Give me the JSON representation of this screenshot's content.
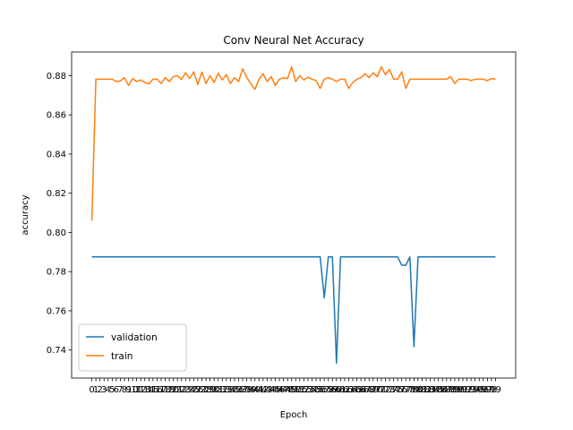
{
  "chart_data": {
    "type": "line",
    "title": "Conv Neural Net Accuracy",
    "x_label": "Epoch",
    "y_label": "accuracy",
    "x": [
      0,
      1,
      2,
      3,
      4,
      5,
      6,
      7,
      8,
      9,
      10,
      11,
      12,
      13,
      14,
      15,
      16,
      17,
      18,
      19,
      20,
      21,
      22,
      23,
      24,
      25,
      26,
      27,
      28,
      29,
      30,
      31,
      32,
      33,
      34,
      35,
      36,
      37,
      38,
      39,
      40,
      41,
      42,
      43,
      44,
      45,
      46,
      47,
      48,
      49,
      50,
      51,
      52,
      53,
      54,
      55,
      56,
      57,
      58,
      59,
      60,
      61,
      62,
      63,
      64,
      65,
      66,
      67,
      68,
      69,
      70,
      71,
      72,
      73,
      74,
      75,
      76,
      77,
      78,
      79,
      80,
      81,
      82,
      83,
      84,
      85,
      86,
      87,
      88,
      89,
      90,
      91,
      92,
      93,
      94,
      95,
      96,
      97,
      98,
      99
    ],
    "series": [
      {
        "name": "validation",
        "color": "#1f77b4",
        "values": [
          0.7875,
          0.7875,
          0.7875,
          0.7875,
          0.7875,
          0.7875,
          0.7875,
          0.7875,
          0.7875,
          0.7875,
          0.7875,
          0.7875,
          0.7875,
          0.7875,
          0.7875,
          0.7875,
          0.7875,
          0.7875,
          0.7875,
          0.7875,
          0.7875,
          0.7875,
          0.7875,
          0.7875,
          0.7875,
          0.7875,
          0.7875,
          0.7875,
          0.7875,
          0.7875,
          0.7875,
          0.7875,
          0.7875,
          0.7875,
          0.7875,
          0.7875,
          0.7875,
          0.7875,
          0.7875,
          0.7875,
          0.7875,
          0.7875,
          0.7875,
          0.7875,
          0.7875,
          0.7875,
          0.7875,
          0.7875,
          0.7875,
          0.7875,
          0.7875,
          0.7875,
          0.7875,
          0.7875,
          0.7875,
          0.7875,
          0.7875,
          0.7667,
          0.7875,
          0.7875,
          0.7333,
          0.7875,
          0.7875,
          0.7875,
          0.7875,
          0.7875,
          0.7875,
          0.7875,
          0.7875,
          0.7875,
          0.7875,
          0.7875,
          0.7875,
          0.7875,
          0.7875,
          0.7875,
          0.7833,
          0.7833,
          0.7875,
          0.7417,
          0.7875,
          0.7875,
          0.7875,
          0.7875,
          0.7875,
          0.7875,
          0.7875,
          0.7875,
          0.7875,
          0.7875,
          0.7875,
          0.7875,
          0.7875,
          0.7875,
          0.7875,
          0.7875,
          0.7875,
          0.7875,
          0.7875,
          0.7875
        ]
      },
      {
        "name": "train",
        "color": "#ff7f0e",
        "values": [
          0.8059,
          0.8782,
          0.8782,
          0.8782,
          0.8782,
          0.8782,
          0.877,
          0.8773,
          0.879,
          0.875,
          0.8785,
          0.877,
          0.8778,
          0.8765,
          0.8758,
          0.8782,
          0.8782,
          0.876,
          0.879,
          0.877,
          0.8795,
          0.88,
          0.878,
          0.8815,
          0.8785,
          0.882,
          0.8755,
          0.8818,
          0.876,
          0.88,
          0.8765,
          0.8812,
          0.8778,
          0.8805,
          0.876,
          0.879,
          0.877,
          0.8835,
          0.879,
          0.876,
          0.873,
          0.8782,
          0.881,
          0.877,
          0.8795,
          0.875,
          0.8782,
          0.879,
          0.8785,
          0.8845,
          0.877,
          0.88,
          0.8778,
          0.8792,
          0.8782,
          0.8775,
          0.8735,
          0.8782,
          0.879,
          0.8782,
          0.877,
          0.8782,
          0.8782,
          0.8735,
          0.8765,
          0.8782,
          0.879,
          0.881,
          0.879,
          0.8815,
          0.8795,
          0.8845,
          0.8805,
          0.8832,
          0.8782,
          0.8782,
          0.882,
          0.8735,
          0.8782,
          0.8782,
          0.8782,
          0.8782,
          0.8782,
          0.8782,
          0.8782,
          0.8782,
          0.8782,
          0.8782,
          0.8795,
          0.876,
          0.8782,
          0.8782,
          0.8782,
          0.8775,
          0.8782,
          0.8782,
          0.8782,
          0.8775,
          0.8785,
          0.8782
        ]
      }
    ],
    "xlim": [
      -4.95,
      103.95
    ],
    "ylim": [
      0.7257,
      0.8921
    ],
    "xticks": [
      0,
      1,
      2,
      3,
      4,
      5,
      6,
      7,
      8,
      9,
      10,
      11,
      12,
      13,
      14,
      15,
      16,
      17,
      18,
      19,
      20,
      21,
      22,
      23,
      24,
      25,
      26,
      27,
      28,
      29,
      30,
      31,
      32,
      33,
      34,
      35,
      36,
      37,
      38,
      39,
      40,
      41,
      42,
      43,
      44,
      45,
      46,
      47,
      48,
      49,
      50,
      51,
      52,
      53,
      54,
      55,
      56,
      57,
      58,
      59,
      60,
      61,
      62,
      63,
      64,
      65,
      66,
      67,
      68,
      69,
      70,
      71,
      72,
      73,
      74,
      75,
      76,
      77,
      78,
      79,
      80,
      81,
      82,
      83,
      84,
      85,
      86,
      87,
      88,
      89,
      90,
      91,
      92,
      93,
      94,
      95,
      96,
      97,
      98,
      99
    ],
    "yticks": [
      0.74,
      0.76,
      0.78,
      {
        "value": 0.8,
        "label": "0.80"
      },
      0.82,
      0.84,
      0.86,
      0.88
    ],
    "legend": "lower left"
  }
}
